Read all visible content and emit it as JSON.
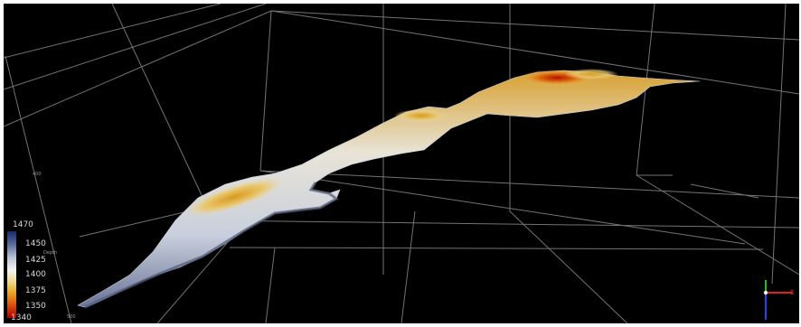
{
  "colorbar": {
    "title": "1470",
    "labels": [
      "1450",
      "1425",
      "1400",
      "1375",
      "1350"
    ],
    "bottom_label": "1340",
    "unit": "Depth",
    "colors": [
      "#1a2a68",
      "#b8c2d6",
      "#f4f4f4",
      "#e8a020",
      "#a80000"
    ]
  },
  "axis": {
    "tick_upper": "400",
    "tick_lower": "500"
  },
  "compass": {
    "east_label": "E"
  }
}
